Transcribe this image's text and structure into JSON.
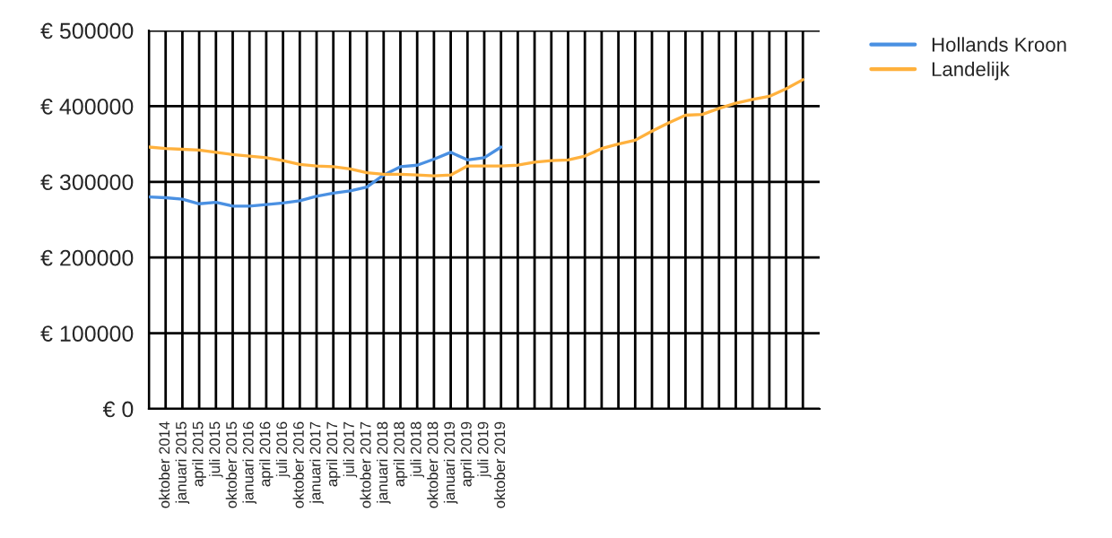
{
  "chart_data": {
    "type": "line",
    "categories": [
      null,
      "oktober 2014",
      "januari 2015",
      "april 2015",
      "juli 2015",
      "oktober 2015",
      "januari 2016",
      "april 2016",
      "juli 2016",
      "oktober 2016",
      "januari 2017",
      "april 2017",
      "juli 2017",
      "oktober 2017",
      "januari 2018",
      "april 2018",
      "juli 2018",
      "oktober 2018",
      "januari 2019",
      "april 2019",
      "juli 2019",
      "oktober 2019",
      null,
      null,
      null,
      null,
      null,
      null,
      null,
      null,
      null,
      null,
      null,
      null,
      null,
      null,
      null,
      null,
      null,
      null
    ],
    "series": [
      {
        "name": "Hollands Kroon",
        "color": "#4a90e2",
        "values": [
          280000,
          279000,
          277000,
          271000,
          273000,
          268000,
          268000,
          270000,
          272000,
          275000,
          281000,
          285000,
          288000,
          293000,
          309000,
          320000,
          322000,
          330000,
          339000,
          329000,
          332000,
          346000,
          null,
          null,
          null,
          null,
          null,
          null,
          null,
          null,
          null,
          null,
          null,
          null,
          null,
          null,
          null,
          null,
          null,
          null
        ]
      },
      {
        "name": "Landelijk",
        "color": "#ffb13d",
        "values": [
          346000,
          344000,
          343000,
          342000,
          339000,
          336000,
          334000,
          332000,
          328000,
          323000,
          321000,
          320000,
          317000,
          312000,
          310000,
          310000,
          309000,
          308000,
          309000,
          321000,
          321000,
          321000,
          322000,
          326000,
          328000,
          329000,
          334000,
          344000,
          350000,
          355000,
          367000,
          378000,
          388000,
          389000,
          397000,
          404000,
          409000,
          413000,
          423000,
          435000
        ]
      }
    ],
    "ylim": [
      0,
      500000
    ],
    "yticks": [
      {
        "value": 0,
        "label": "€ 0"
      },
      {
        "value": 100000,
        "label": "€ 100000"
      },
      {
        "value": 200000,
        "label": "€ 200000"
      },
      {
        "value": 300000,
        "label": "€ 300000"
      },
      {
        "value": 400000,
        "label": "€ 400000"
      },
      {
        "value": 500000,
        "label": "€ 500000"
      }
    ],
    "grid": true,
    "legend": "top right",
    "marker": "none",
    "line_style": "solid"
  }
}
